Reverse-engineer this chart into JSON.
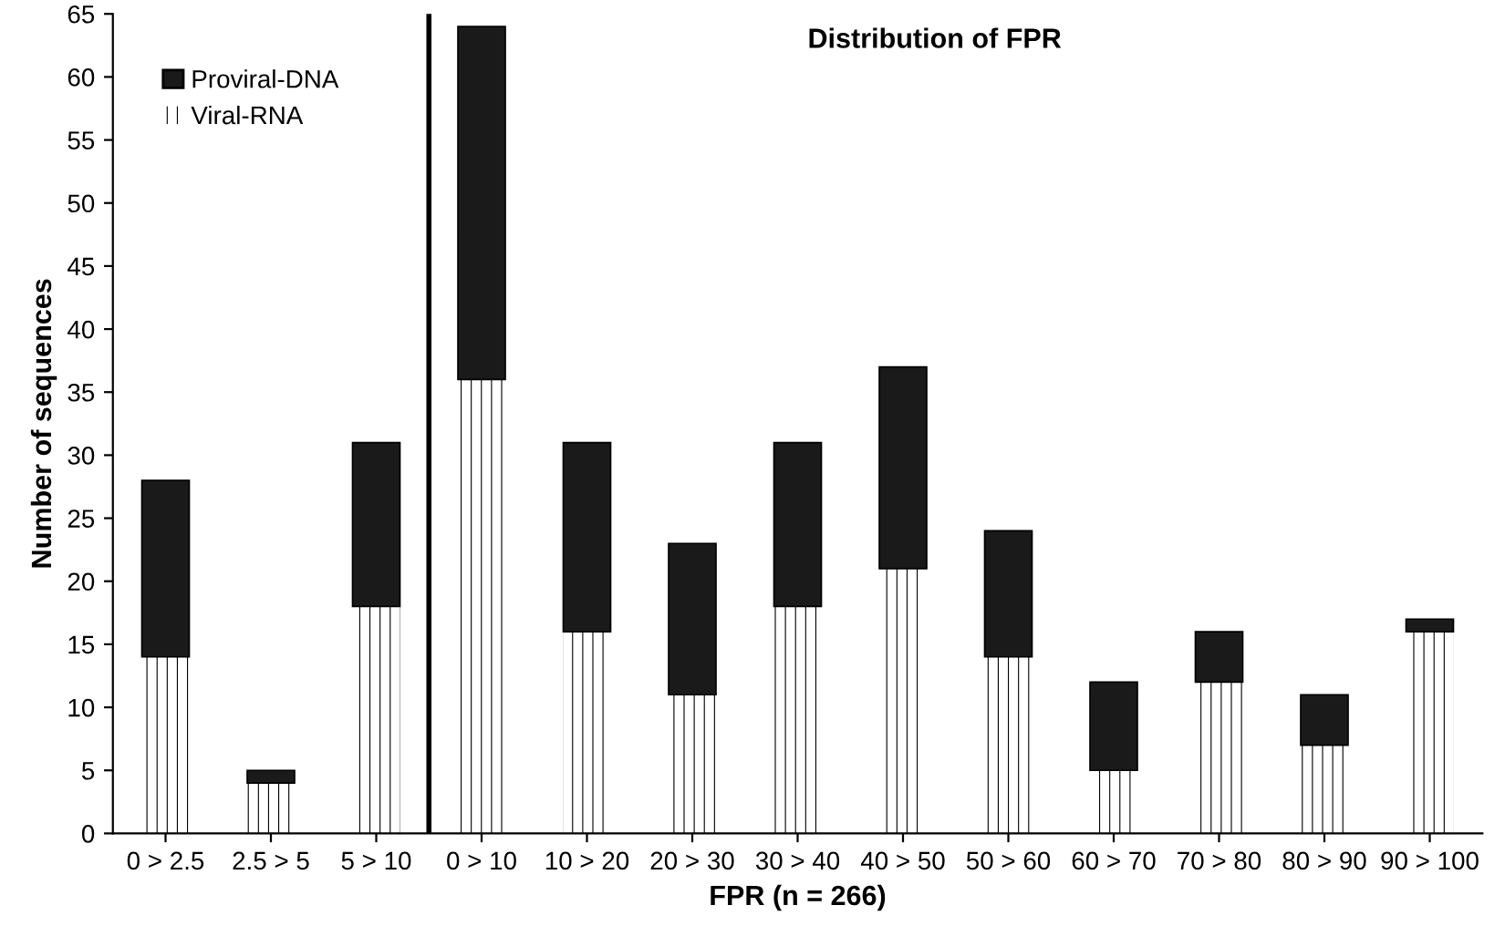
{
  "chart_data": {
    "type": "bar",
    "title": "Distribution of FPR",
    "xlabel": "FPR (n = 266)",
    "ylabel": "Number of sequences",
    "categories": [
      "0 > 2.5",
      "2.5 > 5",
      "5 > 10",
      "0 > 10",
      "10 > 20",
      "20 > 30",
      "30 > 40",
      "40 > 50",
      "50 > 60",
      "60 > 70",
      "70 > 80",
      "80 > 90",
      "90 > 100"
    ],
    "stacked": true,
    "series": [
      {
        "name": "Viral-RNA",
        "color": "#ffffff",
        "values": [
          14,
          4,
          18,
          36,
          16,
          11,
          18,
          21,
          14,
          5,
          12,
          7,
          16
        ]
      },
      {
        "name": "Proviral-DNA",
        "color": "#1a1a1a",
        "values": [
          14,
          1,
          13,
          28,
          15,
          12,
          13,
          16,
          10,
          7,
          4,
          4,
          1
        ]
      }
    ],
    "ylim": [
      0,
      65
    ],
    "yticks": [
      0,
      5,
      10,
      15,
      20,
      25,
      30,
      35,
      40,
      45,
      50,
      55,
      60,
      65
    ],
    "grid": false,
    "legend": "top left"
  }
}
